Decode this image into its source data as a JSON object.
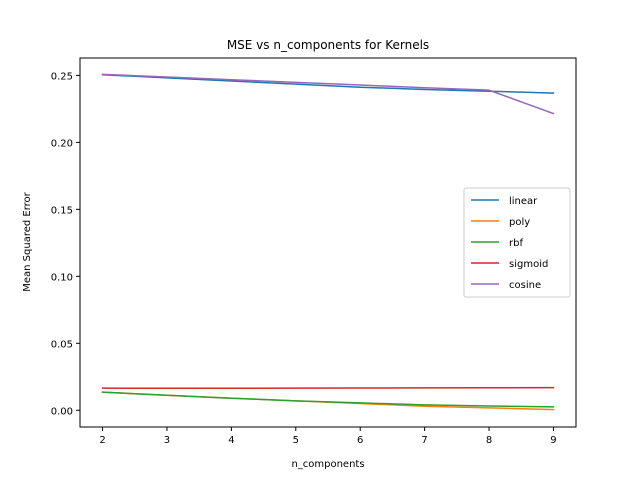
{
  "chart_data": {
    "type": "line",
    "title": "MSE vs n_components for Kernels",
    "xlabel": "n_components",
    "ylabel": "Mean Squared Error",
    "x": [
      2,
      3,
      4,
      5,
      6,
      7,
      8,
      9
    ],
    "xlim": [
      1.65,
      9.35
    ],
    "ylim": [
      -0.0125,
      0.263
    ],
    "xticks": [
      "2",
      "3",
      "4",
      "5",
      "6",
      "7",
      "8",
      "9"
    ],
    "yticks": [
      "0.00",
      "0.05",
      "0.10",
      "0.15",
      "0.20",
      "0.25"
    ],
    "grid": false,
    "legend_position": "center-right",
    "series": [
      {
        "name": "linear",
        "color": "#1f77b4",
        "values": [
          0.2505,
          0.2482,
          0.2458,
          0.2435,
          0.2412,
          0.2395,
          0.2382,
          0.2368
        ]
      },
      {
        "name": "poly",
        "color": "#ff7f0e",
        "values": [
          0.0135,
          0.0112,
          0.009,
          0.007,
          0.005,
          0.003,
          0.0018,
          0.0005
        ]
      },
      {
        "name": "rbf",
        "color": "#2ca02c",
        "values": [
          0.0135,
          0.0112,
          0.009,
          0.007,
          0.0055,
          0.004,
          0.0032,
          0.0025
        ]
      },
      {
        "name": "sigmoid",
        "color": "#d62728",
        "values": [
          0.0165,
          0.0164,
          0.0164,
          0.0165,
          0.0166,
          0.0167,
          0.0168,
          0.0169
        ]
      },
      {
        "name": "cosine",
        "color": "#9467bd",
        "values": [
          0.2508,
          0.2488,
          0.2468,
          0.2448,
          0.2428,
          0.2408,
          0.239,
          0.2215
        ]
      }
    ]
  }
}
